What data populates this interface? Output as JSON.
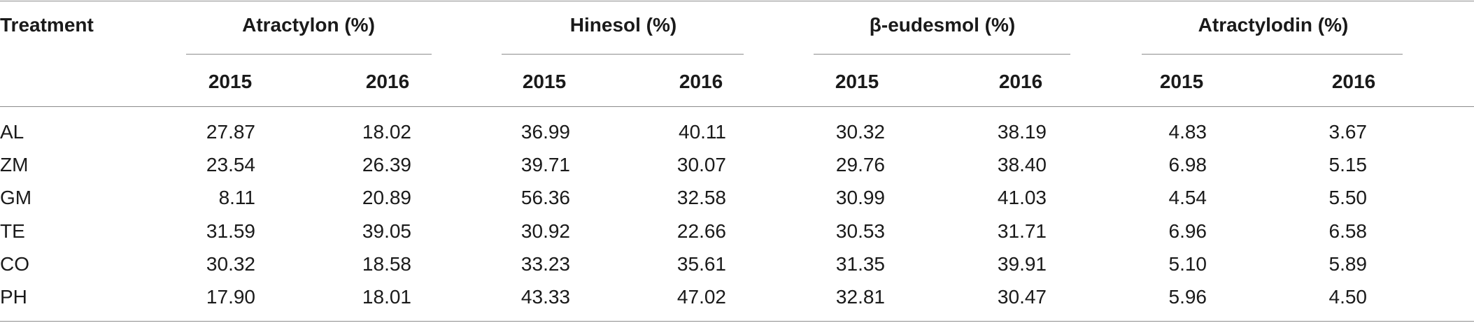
{
  "table": {
    "treatment_header": "Treatment",
    "groups": [
      {
        "label": "Atractylon (%)"
      },
      {
        "label": "Hinesol (%)"
      },
      {
        "label": "β-eudesmol (%)"
      },
      {
        "label": "Atractylodin (%)"
      }
    ],
    "years": [
      "2015",
      "2016"
    ],
    "rows": [
      {
        "name": "AL",
        "values": [
          "27.87",
          "18.02",
          "36.99",
          "40.11",
          "30.32",
          "38.19",
          "4.83",
          "3.67"
        ]
      },
      {
        "name": "ZM",
        "values": [
          "23.54",
          "26.39",
          "39.71",
          "30.07",
          "29.76",
          "38.40",
          "6.98",
          "5.15"
        ]
      },
      {
        "name": "GM",
        "values": [
          "8.11",
          "20.89",
          "56.36",
          "32.58",
          "30.99",
          "41.03",
          "4.54",
          "5.50"
        ]
      },
      {
        "name": "TE",
        "values": [
          "31.59",
          "39.05",
          "30.92",
          "22.66",
          "30.53",
          "31.71",
          "6.96",
          "6.58"
        ]
      },
      {
        "name": "CO",
        "values": [
          "30.32",
          "18.58",
          "33.23",
          "35.61",
          "31.35",
          "39.91",
          "5.10",
          "5.89"
        ]
      },
      {
        "name": "PH",
        "values": [
          "17.90",
          "18.01",
          "43.33",
          "47.02",
          "32.81",
          "30.47",
          "5.96",
          "4.50"
        ]
      }
    ]
  }
}
